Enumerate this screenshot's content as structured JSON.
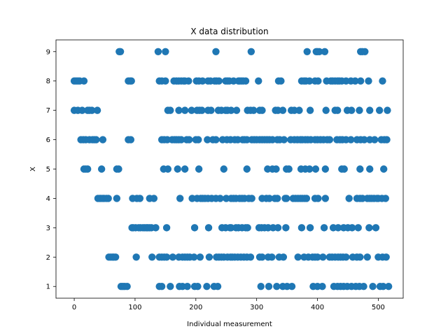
{
  "chart_data": {
    "type": "scatter",
    "title": "X data distribution",
    "xlabel": "Individual measurement",
    "ylabel": "X",
    "xlim": [
      -30,
      541
    ],
    "ylim": [
      0.6,
      9.4
    ],
    "xticks": [
      0,
      100,
      200,
      300,
      400,
      500
    ],
    "yticks": [
      1,
      2,
      3,
      4,
      5,
      6,
      7,
      8,
      9
    ],
    "grid": false,
    "marker_color": "#1f77b4",
    "series": [
      {
        "rows": [
          {
            "y": 9,
            "x": [
              74,
              76,
              138,
              150,
              233,
              291,
              383,
              398,
              400,
              403,
              412,
              471,
              474,
              478
            ]
          },
          {
            "y": 8,
            "x": [
              0,
              3,
              6,
              9,
              16,
              89,
              92,
              94,
              140,
              144,
              150,
              164,
              168,
              172,
              176,
              180,
              182,
              188,
              201,
              205,
              211,
              220,
              224,
              231,
              234,
              238,
              249,
              252,
              255,
              262,
              270,
              272,
              275,
              278,
              282,
              303,
              336,
              340,
              374,
              378,
              381,
              387,
              396,
              401,
              415,
              422,
              425,
              429,
              433,
              436,
              440,
              447,
              455,
              462,
              471,
              484,
              507
            ]
          },
          {
            "y": 7,
            "x": [
              0,
              6,
              13,
              22,
              25,
              29,
              38,
              154,
              158,
              172,
              182,
              193,
              202,
              206,
              210,
              220,
              225,
              237,
              242,
              249,
              252,
              258,
              267,
              285,
              290,
              295,
              305,
              309,
              331,
              335,
              343,
              357,
              362,
              370,
              388,
              414,
              429,
              433,
              449,
              456,
              469,
              486,
              502,
              515
            ]
          },
          {
            "y": 6,
            "x": [
              11,
              15,
              19,
              25,
              30,
              33,
              36,
              47,
              89,
              93,
              144,
              148,
              153,
              161,
              165,
              168,
              172,
              176,
              185,
              189,
              200,
              204,
              219,
              228,
              233,
              244,
              251,
              257,
              264,
              269,
              277,
              280,
              284,
              292,
              296,
              300,
              305,
              309,
              313,
              317,
              321,
              326,
              334,
              338,
              345,
              356,
              362,
              367,
              372,
              375,
              380,
              384,
              389,
              396,
              400,
              405,
              410,
              416,
              420,
              432,
              437,
              441,
              447,
              455,
              465,
              471,
              477,
              486,
              494,
              505,
              510,
              514
            ]
          },
          {
            "y": 5,
            "x": [
              16,
              19,
              22,
              45,
              70,
              73,
              147,
              154,
              170,
              182,
              205,
              246,
              284,
              318,
              326,
              332,
              349,
              353,
              373,
              380,
              387,
              397,
              413,
              440,
              444,
              470,
              486,
              509
            ]
          },
          {
            "y": 4,
            "x": [
              39,
              42,
              44,
              47,
              49,
              53,
              56,
              70,
              96,
              103,
              108,
              124,
              131,
              174,
              194,
              202,
              208,
              211,
              215,
              220,
              226,
              233,
              240,
              250,
              258,
              262,
              266,
              272,
              276,
              280,
              287,
              292,
              309,
              316,
              321,
              330,
              334,
              347,
              349,
              360,
              364,
              368,
              372,
              375,
              379,
              382,
              396,
              401,
              413,
              452,
              465,
              470,
              474,
              482,
              486,
              489,
              493,
              498,
              500,
              506,
              512
            ]
          },
          {
            "y": 3,
            "x": [
              95,
              97,
              101,
              106,
              109,
              113,
              116,
              119,
              121,
              124,
              127,
              134,
              152,
              198,
              221,
              243,
              249,
              256,
              258,
              266,
              270,
              276,
              282,
              285,
              304,
              308,
              313,
              319,
              327,
              335,
              348,
              374,
              388,
              411,
              426,
              434,
              443,
              450,
              457,
              467,
              485,
              496
            ]
          },
          {
            "y": 2,
            "x": [
              57,
              60,
              63,
              65,
              68,
              102,
              128,
              140,
              144,
              148,
              152,
              162,
              172,
              178,
              182,
              186,
              190,
              197,
              207,
              222,
              234,
              238,
              242,
              246,
              252,
              257,
              260,
              264,
              269,
              274,
              279,
              284,
              290,
              305,
              309,
              319,
              325,
              337,
              344,
              368,
              378,
              385,
              392,
              396,
              400,
              409,
              420,
              424,
              429,
              434,
              438,
              442,
              447,
              458,
              465,
              470,
              482,
              500,
              507,
              513
            ]
          },
          {
            "y": 1,
            "x": [
              77,
              80,
              83,
              87,
              140,
              144,
              158,
              173,
              178,
              186,
              198,
              203,
              218,
              230,
              236,
              307,
              320,
              333,
              343,
              350,
              358,
              393,
              400,
              408,
              427,
              433,
              438,
              443,
              449,
              456,
              463,
              469,
              476,
              491,
              503,
              508,
              517
            ]
          }
        ]
      }
    ]
  }
}
